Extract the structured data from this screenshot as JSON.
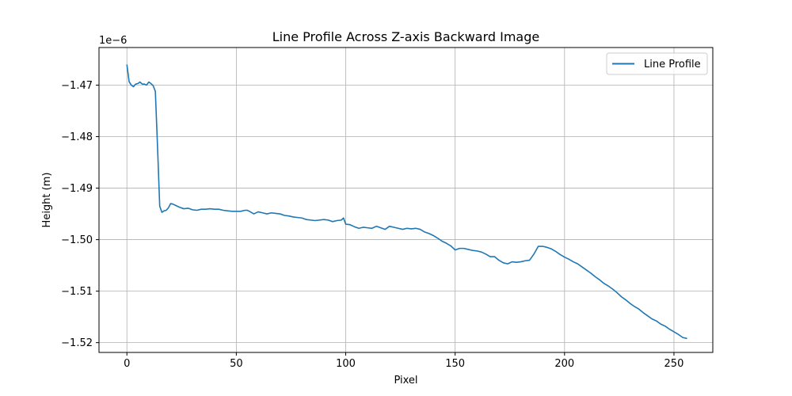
{
  "chart_data": {
    "type": "line",
    "title": "Line Profile Across Z-axis Backward Image",
    "xlabel": "Pixel",
    "ylabel": "Height (m)",
    "offset_label": "1e−6",
    "xlim": [
      -12.75,
      267.75
    ],
    "ylim": [
      -1.5219,
      -1.4627
    ],
    "x_ticks": [
      0,
      50,
      100,
      150,
      200,
      250
    ],
    "x_tick_labels": [
      "0",
      "50",
      "100",
      "150",
      "200",
      "250"
    ],
    "y_ticks": [
      -1.52,
      -1.51,
      -1.5,
      -1.49,
      -1.48,
      -1.47
    ],
    "y_tick_labels": [
      "−1.52",
      "−1.51",
      "−1.50",
      "−1.49",
      "−1.48",
      "−1.47"
    ],
    "grid": true,
    "legend_position": "top-right",
    "series": [
      {
        "name": "Line Profile",
        "color": "#1f77b4",
        "x": [
          0,
          1,
          2,
          3,
          4,
          5,
          6,
          7,
          8,
          9,
          10,
          11,
          12,
          13,
          14,
          15,
          16,
          17,
          18,
          19,
          20,
          21,
          22,
          24,
          26,
          28,
          30,
          32,
          34,
          36,
          38,
          40,
          42,
          44,
          46,
          48,
          50,
          52,
          54,
          55,
          56,
          58,
          60,
          62,
          64,
          66,
          68,
          70,
          72,
          74,
          76,
          78,
          80,
          82,
          84,
          86,
          88,
          90,
          92,
          94,
          96,
          98,
          99,
          100,
          102,
          104,
          106,
          108,
          110,
          112,
          114,
          116,
          118,
          120,
          122,
          124,
          126,
          128,
          130,
          132,
          134,
          136,
          138,
          140,
          142,
          144,
          146,
          148,
          150,
          152,
          154,
          156,
          158,
          160,
          162,
          164,
          166,
          168,
          170,
          172,
          174,
          176,
          178,
          180,
          182,
          184,
          186,
          188,
          190,
          192,
          194,
          196,
          198,
          200,
          202,
          204,
          206,
          208,
          210,
          212,
          214,
          216,
          218,
          220,
          222,
          224,
          226,
          228,
          230,
          232,
          234,
          236,
          238,
          240,
          242,
          244,
          246,
          248,
          250,
          252,
          254,
          256
        ],
        "y": [
          -1.466,
          -1.4693,
          -1.47,
          -1.4703,
          -1.4698,
          -1.4697,
          -1.4694,
          -1.4698,
          -1.4698,
          -1.47,
          -1.4694,
          -1.4697,
          -1.4701,
          -1.4712,
          -1.482,
          -1.4935,
          -1.4947,
          -1.4944,
          -1.4943,
          -1.4938,
          -1.493,
          -1.4931,
          -1.4933,
          -1.4937,
          -1.494,
          -1.4939,
          -1.4942,
          -1.4943,
          -1.4941,
          -1.4941,
          -1.494,
          -1.4941,
          -1.4941,
          -1.4943,
          -1.4944,
          -1.4945,
          -1.4945,
          -1.4945,
          -1.4943,
          -1.4943,
          -1.4945,
          -1.495,
          -1.4946,
          -1.4948,
          -1.495,
          -1.4948,
          -1.4949,
          -1.495,
          -1.4953,
          -1.4954,
          -1.4956,
          -1.4957,
          -1.4958,
          -1.4961,
          -1.4962,
          -1.4963,
          -1.4962,
          -1.4961,
          -1.4962,
          -1.4965,
          -1.4963,
          -1.4962,
          -1.4958,
          -1.497,
          -1.4971,
          -1.4975,
          -1.4978,
          -1.4976,
          -1.4977,
          -1.4978,
          -1.4974,
          -1.4977,
          -1.498,
          -1.4974,
          -1.4976,
          -1.4978,
          -1.498,
          -1.4978,
          -1.4979,
          -1.4978,
          -1.498,
          -1.4985,
          -1.4988,
          -1.4992,
          -1.4997,
          -1.5003,
          -1.5007,
          -1.5012,
          -1.502,
          -1.5017,
          -1.5017,
          -1.5019,
          -1.5021,
          -1.5022,
          -1.5024,
          -1.5028,
          -1.5033,
          -1.5033,
          -1.504,
          -1.5045,
          -1.5047,
          -1.5043,
          -1.5044,
          -1.5043,
          -1.5041,
          -1.504,
          -1.5028,
          -1.5013,
          -1.5013,
          -1.5015,
          -1.5018,
          -1.5023,
          -1.5029,
          -1.5034,
          -1.5038,
          -1.5043,
          -1.5047,
          -1.5053,
          -1.5059,
          -1.5065,
          -1.5072,
          -1.5078,
          -1.5085,
          -1.509,
          -1.5096,
          -1.5103,
          -1.5111,
          -1.5117,
          -1.5124,
          -1.513,
          -1.5135,
          -1.5142,
          -1.5148,
          -1.5154,
          -1.5158,
          -1.5164,
          -1.5168,
          -1.5174,
          -1.5179,
          -1.5184,
          -1.519,
          -1.5192
        ]
      }
    ]
  }
}
